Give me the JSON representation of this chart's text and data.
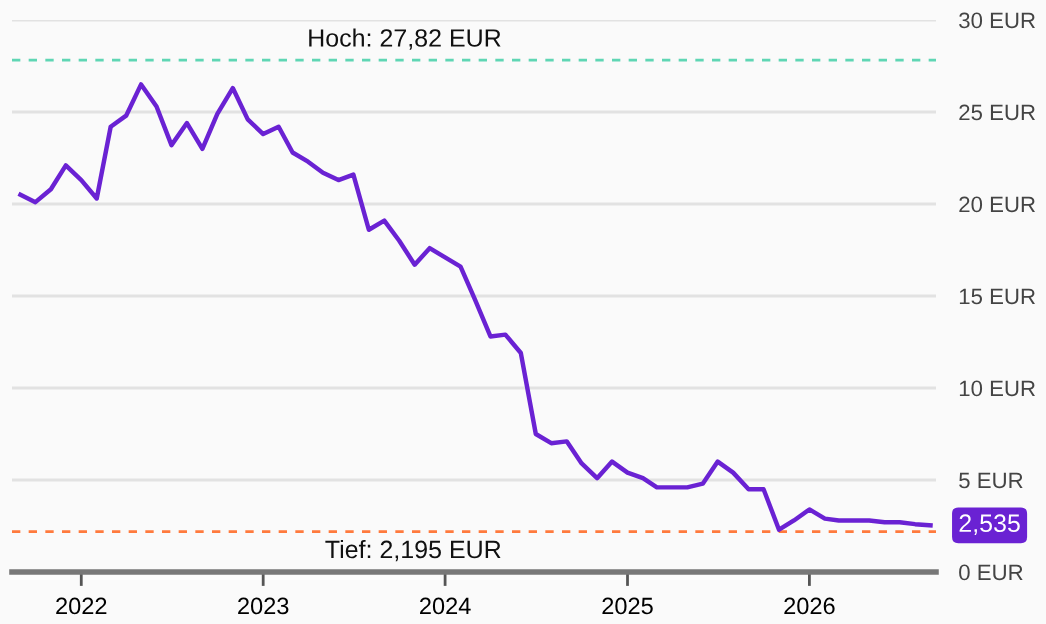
{
  "chart_data": {
    "type": "line",
    "x": [
      "2021-09",
      "2021-10",
      "2021-11",
      "2021-12",
      "2022-01",
      "2022-02",
      "2022-03",
      "2022-04",
      "2022-05",
      "2022-06",
      "2022-07",
      "2022-08",
      "2022-09",
      "2022-10",
      "2022-11",
      "2022-12",
      "2023-01",
      "2023-02",
      "2023-03",
      "2023-04",
      "2023-05",
      "2023-06",
      "2023-07",
      "2023-08",
      "2023-09",
      "2023-10",
      "2023-11",
      "2023-12",
      "2024-01",
      "2024-02",
      "2024-03",
      "2024-04",
      "2024-05",
      "2024-06",
      "2024-07",
      "2024-08",
      "2024-09",
      "2024-10",
      "2024-11",
      "2024-12",
      "2025-01",
      "2025-02",
      "2025-03",
      "2025-04",
      "2025-05",
      "2025-06",
      "2025-07",
      "2025-08",
      "2025-09",
      "2025-10",
      "2025-11",
      "2025-12",
      "2026-01",
      "2026-02",
      "2026-03",
      "2026-04",
      "2026-05",
      "2026-06",
      "2026-07",
      "2026-08",
      "2026-09"
    ],
    "series": [
      {
        "color": "#6a22d3",
        "values": [
          20.5,
          20.1,
          20.8,
          22.1,
          21.3,
          20.3,
          24.2,
          24.8,
          26.5,
          25.3,
          23.2,
          24.4,
          23.0,
          24.9,
          26.3,
          24.6,
          23.8,
          24.2,
          22.8,
          22.3,
          21.7,
          21.3,
          21.6,
          18.6,
          19.1,
          18.0,
          16.7,
          17.6,
          17.1,
          16.6,
          14.8,
          12.8,
          12.9,
          11.9,
          7.5,
          7.0,
          7.1,
          5.9,
          5.1,
          6.0,
          5.4,
          5.1,
          4.6,
          4.6,
          4.6,
          4.8,
          6.0,
          5.4,
          4.5,
          4.5,
          2.3,
          2.8,
          3.4,
          2.9,
          2.8,
          2.8,
          2.8,
          2.7,
          2.7,
          2.6,
          2.535
        ]
      }
    ],
    "xlim": [
      "2021-08-15",
      "2026-09-12"
    ],
    "xticks": [
      {
        "value": "2022-01-01",
        "label": "2022"
      },
      {
        "value": "2023-01-01",
        "label": "2023"
      },
      {
        "value": "2024-01-01",
        "label": "2024"
      },
      {
        "value": "2025-01-01",
        "label": "2025"
      },
      {
        "value": "2026-01-01",
        "label": "2026"
      }
    ],
    "ylim": [
      0,
      30
    ],
    "yticks": [
      {
        "value": 0,
        "label": "0 EUR"
      },
      {
        "value": 5,
        "label": "5 EUR"
      },
      {
        "value": 10,
        "label": "10 EUR"
      },
      {
        "value": 15,
        "label": "15 EUR"
      },
      {
        "value": 20,
        "label": "20 EUR"
      },
      {
        "value": 25,
        "label": "25 EUR"
      },
      {
        "value": 30,
        "label": "30 EUR"
      }
    ],
    "grid": "y",
    "line_style": "solid",
    "ref_lines": [
      {
        "axis": "y",
        "value": 27.82,
        "label": "Hoch: 27,82 EUR",
        "color": "#5fd6b4",
        "line_style": "dashed"
      },
      {
        "axis": "y",
        "value": 2.195,
        "label": "Tief: 2,195 EUR",
        "color": "#ff7a3d",
        "line_style": "dashed"
      }
    ],
    "annotations": [
      {
        "text": "2,535",
        "x": "2026-09",
        "y": 2.535
      }
    ]
  }
}
